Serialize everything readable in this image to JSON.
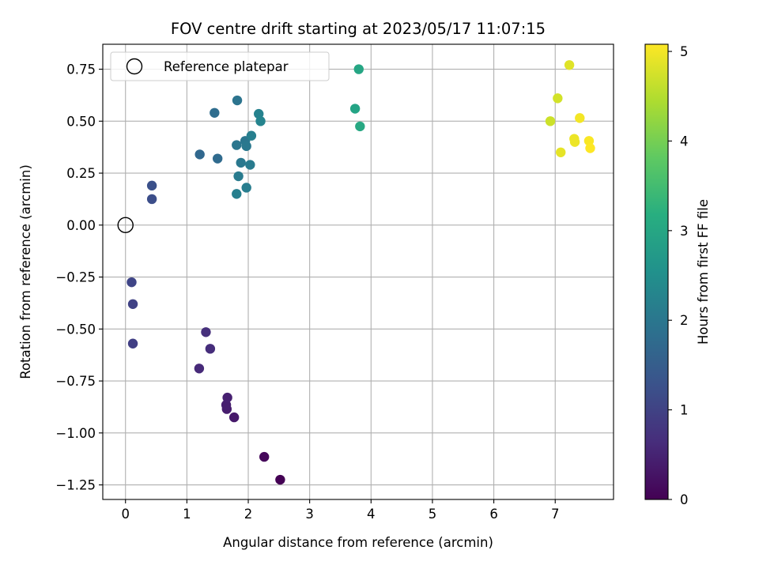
{
  "chart_data": {
    "type": "scatter",
    "title": "FOV centre drift starting at 2023/05/17 11:07:15",
    "xlabel": "Angular distance from reference (arcmin)",
    "ylabel": "Rotation from reference (arcmin)",
    "xlim": [
      -0.37,
      7.95
    ],
    "ylim": [
      -1.32,
      0.87
    ],
    "xticks": [
      0,
      1,
      2,
      3,
      4,
      5,
      6,
      7
    ],
    "xtick_labels": [
      "0",
      "1",
      "2",
      "3",
      "4",
      "5",
      "6",
      "7"
    ],
    "yticks": [
      0.75,
      0.5,
      0.25,
      0.0,
      -0.25,
      -0.5,
      -0.75,
      -1.0,
      -1.25
    ],
    "ytick_labels": [
      "0.75",
      "0.50",
      "0.25",
      "0.00",
      "−0.25",
      "−0.50",
      "−0.75",
      "−1.00",
      "−1.25"
    ],
    "grid": true,
    "colorbar": {
      "label": "Hours from first FF file",
      "range": [
        0,
        5.08
      ],
      "colormap": "viridis",
      "ticks": [
        0,
        1,
        2,
        3,
        4,
        5
      ],
      "tick_labels": [
        "0",
        "1",
        "2",
        "3",
        "4",
        "5"
      ]
    },
    "legend": {
      "position": "top-left",
      "entries": [
        "Reference platepar"
      ]
    },
    "reference_point": {
      "x": 0.0,
      "y": 0.0
    },
    "points": [
      {
        "x": 2.52,
        "y": -1.225,
        "h": 0.0
      },
      {
        "x": 2.26,
        "y": -1.115,
        "h": 0.1
      },
      {
        "x": 1.77,
        "y": -0.925,
        "h": 0.35
      },
      {
        "x": 1.65,
        "y": -0.885,
        "h": 0.4
      },
      {
        "x": 1.64,
        "y": -0.865,
        "h": 0.42
      },
      {
        "x": 1.66,
        "y": -0.83,
        "h": 0.45
      },
      {
        "x": 1.2,
        "y": -0.69,
        "h": 0.6
      },
      {
        "x": 1.38,
        "y": -0.595,
        "h": 0.65
      },
      {
        "x": 1.31,
        "y": -0.515,
        "h": 0.7
      },
      {
        "x": 0.12,
        "y": -0.57,
        "h": 0.95
      },
      {
        "x": 0.12,
        "y": -0.38,
        "h": 1.0
      },
      {
        "x": 0.1,
        "y": -0.275,
        "h": 1.05
      },
      {
        "x": 0.43,
        "y": 0.125,
        "h": 1.2
      },
      {
        "x": 0.43,
        "y": 0.19,
        "h": 1.25
      },
      {
        "x": 1.21,
        "y": 0.34,
        "h": 1.7
      },
      {
        "x": 1.5,
        "y": 0.32,
        "h": 1.75
      },
      {
        "x": 1.45,
        "y": 0.54,
        "h": 1.8
      },
      {
        "x": 1.82,
        "y": 0.6,
        "h": 1.95
      },
      {
        "x": 1.81,
        "y": 0.385,
        "h": 2.0
      },
      {
        "x": 1.95,
        "y": 0.405,
        "h": 2.0
      },
      {
        "x": 1.97,
        "y": 0.38,
        "h": 2.05
      },
      {
        "x": 1.88,
        "y": 0.3,
        "h": 2.05
      },
      {
        "x": 2.03,
        "y": 0.29,
        "h": 2.1
      },
      {
        "x": 1.84,
        "y": 0.235,
        "h": 2.1
      },
      {
        "x": 1.97,
        "y": 0.18,
        "h": 2.15
      },
      {
        "x": 1.81,
        "y": 0.15,
        "h": 2.2
      },
      {
        "x": 2.05,
        "y": 0.43,
        "h": 2.2
      },
      {
        "x": 2.17,
        "y": 0.535,
        "h": 2.25
      },
      {
        "x": 2.2,
        "y": 0.5,
        "h": 2.3
      },
      {
        "x": 3.74,
        "y": 0.56,
        "h": 2.95
      },
      {
        "x": 3.8,
        "y": 0.75,
        "h": 3.0
      },
      {
        "x": 3.82,
        "y": 0.475,
        "h": 3.05
      },
      {
        "x": 6.92,
        "y": 0.5,
        "h": 4.7
      },
      {
        "x": 7.04,
        "y": 0.61,
        "h": 4.75
      },
      {
        "x": 7.23,
        "y": 0.77,
        "h": 4.85
      },
      {
        "x": 7.09,
        "y": 0.35,
        "h": 4.9
      },
      {
        "x": 7.31,
        "y": 0.415,
        "h": 4.95
      },
      {
        "x": 7.32,
        "y": 0.4,
        "h": 4.95
      },
      {
        "x": 7.4,
        "y": 0.515,
        "h": 5.0
      },
      {
        "x": 7.55,
        "y": 0.405,
        "h": 5.05
      },
      {
        "x": 7.57,
        "y": 0.37,
        "h": 5.08
      }
    ]
  }
}
